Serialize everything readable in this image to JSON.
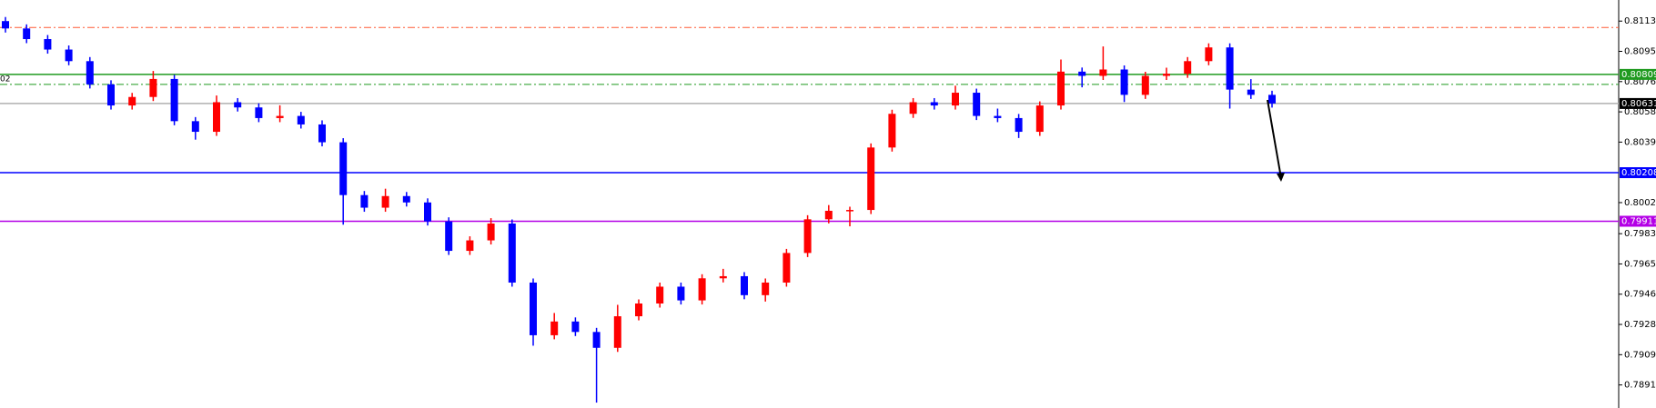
{
  "chart_data": {
    "type": "candlestick",
    "bull_color": "#ff0000",
    "bear_color": "#0000ff",
    "open": [
      0.81135,
      0.8109,
      0.81025,
      0.80961,
      0.8089,
      0.80748,
      0.80619,
      0.80671,
      0.80781,
      0.80523,
      0.80458,
      0.80639,
      0.80607,
      0.80542,
      0.80555,
      0.80503,
      0.80394,
      0.80071,
      0.79994,
      0.80065,
      0.80026,
      0.7991,
      0.7973,
      0.79794,
      0.79897,
      0.79536,
      0.79214,
      0.79298,
      0.79234,
      0.79137,
      0.7933,
      0.79408,
      0.79511,
      0.79427,
      0.79562,
      0.79575,
      0.79459,
      0.79536,
      0.79717,
      0.79923,
      0.79975,
      0.7998,
      0.80362,
      0.80568,
      0.80639,
      0.80619,
      0.80697,
      0.80555,
      0.80542,
      0.80458,
      0.80619,
      0.80826,
      0.808,
      0.80839,
      0.80684,
      0.808,
      0.80813,
      0.8089,
      0.80974,
      0.80716,
      0.80684
    ],
    "high": [
      0.8116,
      0.81115,
      0.8105,
      0.80986,
      0.80915,
      0.80773,
      0.80696,
      0.8083,
      0.80806,
      0.80548,
      0.8068,
      0.80664,
      0.80632,
      0.8062,
      0.8058,
      0.80528,
      0.80419,
      0.80096,
      0.8011,
      0.8009,
      0.80051,
      0.79935,
      0.79819,
      0.7993,
      0.79922,
      0.79561,
      0.7935,
      0.79323,
      0.79259,
      0.794,
      0.79433,
      0.79536,
      0.79536,
      0.79587,
      0.7962,
      0.796,
      0.79561,
      0.79742,
      0.79948,
      0.8001,
      0.8,
      0.80387,
      0.80593,
      0.80664,
      0.80664,
      0.8074,
      0.80722,
      0.806,
      0.80567,
      0.80644,
      0.809,
      0.80851,
      0.8098,
      0.80864,
      0.80825,
      0.8085,
      0.80915,
      0.80999,
      0.80999,
      0.8078,
      0.80709
    ],
    "low": [
      0.81065,
      0.81,
      0.80936,
      0.80865,
      0.80723,
      0.80594,
      0.80594,
      0.80646,
      0.80498,
      0.8041,
      0.80433,
      0.80582,
      0.80517,
      0.80517,
      0.80478,
      0.80369,
      0.7989,
      0.79969,
      0.79969,
      0.80001,
      0.79885,
      0.79705,
      0.79705,
      0.79769,
      0.79511,
      0.7915,
      0.79189,
      0.79209,
      0.78802,
      0.79112,
      0.79305,
      0.79383,
      0.79402,
      0.79402,
      0.79537,
      0.79434,
      0.7942,
      0.79511,
      0.79692,
      0.79898,
      0.7988,
      0.79955,
      0.80337,
      0.80543,
      0.80594,
      0.80594,
      0.8053,
      0.80517,
      0.8042,
      0.80433,
      0.80594,
      0.8073,
      0.80775,
      0.8064,
      0.80659,
      0.80775,
      0.80788,
      0.80865,
      0.806,
      0.80659,
      0.80606
    ],
    "close": [
      0.8109,
      0.81025,
      0.80961,
      0.8089,
      0.80748,
      0.80619,
      0.80671,
      0.80781,
      0.80523,
      0.80458,
      0.80639,
      0.80607,
      0.80542,
      0.80555,
      0.80503,
      0.80394,
      0.80071,
      0.79994,
      0.80065,
      0.80026,
      0.7991,
      0.7973,
      0.79794,
      0.79897,
      0.79536,
      0.79214,
      0.79298,
      0.79234,
      0.79137,
      0.7933,
      0.79408,
      0.79511,
      0.79427,
      0.79562,
      0.79575,
      0.79459,
      0.79536,
      0.79717,
      0.79923,
      0.79975,
      0.7998,
      0.80362,
      0.80568,
      0.80639,
      0.80619,
      0.80697,
      0.80555,
      0.80542,
      0.80458,
      0.80619,
      0.80826,
      0.808,
      0.80839,
      0.80684,
      0.808,
      0.80813,
      0.8089,
      0.80974,
      0.80716,
      0.80684,
      0.80631
    ],
    "ylim": [
      0.78769,
      0.81264
    ],
    "yticks": [
      0.81135,
      0.8095,
      0.80765,
      0.8058,
      0.80395,
      0.80025,
      0.79835,
      0.7965,
      0.79465,
      0.7928,
      0.79095,
      0.7891
    ],
    "ytick_labels": [
      "0.81135",
      "0.80950",
      "0.80765",
      "0.80580",
      "0.80395",
      "0.80025",
      "0.79835",
      "0.79650",
      "0.79465",
      "0.79280",
      "0.79095",
      "0.78910"
    ],
    "levels": [
      {
        "value": 0.81096,
        "color": "#ff5a36",
        "style": "dashdot"
      },
      {
        "value": 0.80809,
        "color": "#1f9a1f",
        "style": "solid",
        "label": "0.80809"
      },
      {
        "value": 0.80748,
        "color": "#1f9a1f",
        "style": "dashdot"
      },
      {
        "value": 0.80631,
        "color": "#b0b0b0",
        "style": "solid",
        "label": "0.80631",
        "label_color": "#000000"
      },
      {
        "value": 0.80208,
        "color": "#0000ff",
        "style": "solid",
        "label": "0.80208"
      },
      {
        "value": 0.79911,
        "color": "#b400e6",
        "style": "solid",
        "label": "0.79911"
      }
    ],
    "clipped_label": "02"
  }
}
